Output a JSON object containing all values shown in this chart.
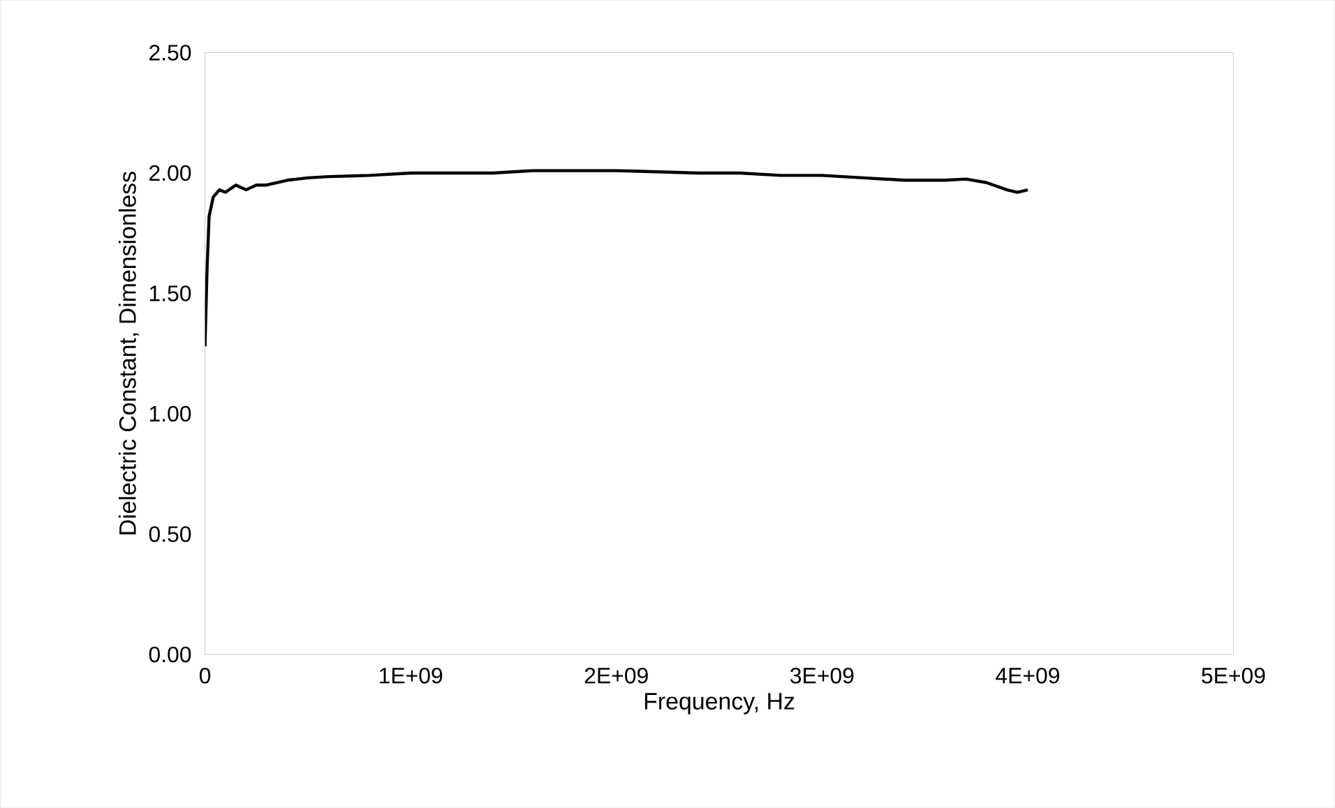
{
  "chart_data": {
    "type": "line",
    "xlabel": "Frequency, Hz",
    "ylabel": "Dielectric Constant, Dimensionless",
    "xlim": [
      0,
      5000000000
    ],
    "ylim": [
      0,
      2.5
    ],
    "xticks": [
      0,
      {
        "value": 1000000000,
        "label": "1E+09"
      },
      {
        "value": 2000000000,
        "label": "2E+09"
      },
      {
        "value": 3000000000,
        "label": "3E+09"
      },
      {
        "value": 4000000000,
        "label": "4E+09"
      },
      {
        "value": 5000000000,
        "label": "5E+09"
      }
    ],
    "yticks": [
      {
        "value": 0,
        "label": "0.00"
      },
      {
        "value": 0.5,
        "label": "0.50"
      },
      {
        "value": 1,
        "label": "1.00"
      },
      {
        "value": 1.5,
        "label": "1.50"
      },
      {
        "value": 2,
        "label": "2.00"
      },
      {
        "value": 2.5,
        "label": "2.50"
      }
    ],
    "grid": false,
    "marker": "none",
    "line_style": "solid",
    "series": [
      {
        "color": "#000000",
        "x": [
          0,
          10000000,
          20000000,
          40000000,
          70000000,
          100000000,
          150000000,
          200000000,
          250000000,
          300000000,
          400000000,
          500000000,
          600000000,
          800000000,
          1000000000,
          1200000000,
          1400000000,
          1600000000,
          1800000000,
          2000000000,
          2200000000,
          2400000000,
          2600000000,
          2800000000,
          3000000000,
          3200000000,
          3400000000,
          3600000000,
          3700000000,
          3800000000,
          3900000000,
          3950000000,
          4000000000
        ],
        "values": [
          1.28,
          1.6,
          1.82,
          1.9,
          1.93,
          1.92,
          1.95,
          1.93,
          1.95,
          1.95,
          1.97,
          1.98,
          1.985,
          1.99,
          2.0,
          2.0,
          2.0,
          2.01,
          2.01,
          2.01,
          2.005,
          2.0,
          2.0,
          1.99,
          1.99,
          1.98,
          1.97,
          1.97,
          1.975,
          1.96,
          1.93,
          1.92,
          1.93
        ]
      }
    ]
  }
}
